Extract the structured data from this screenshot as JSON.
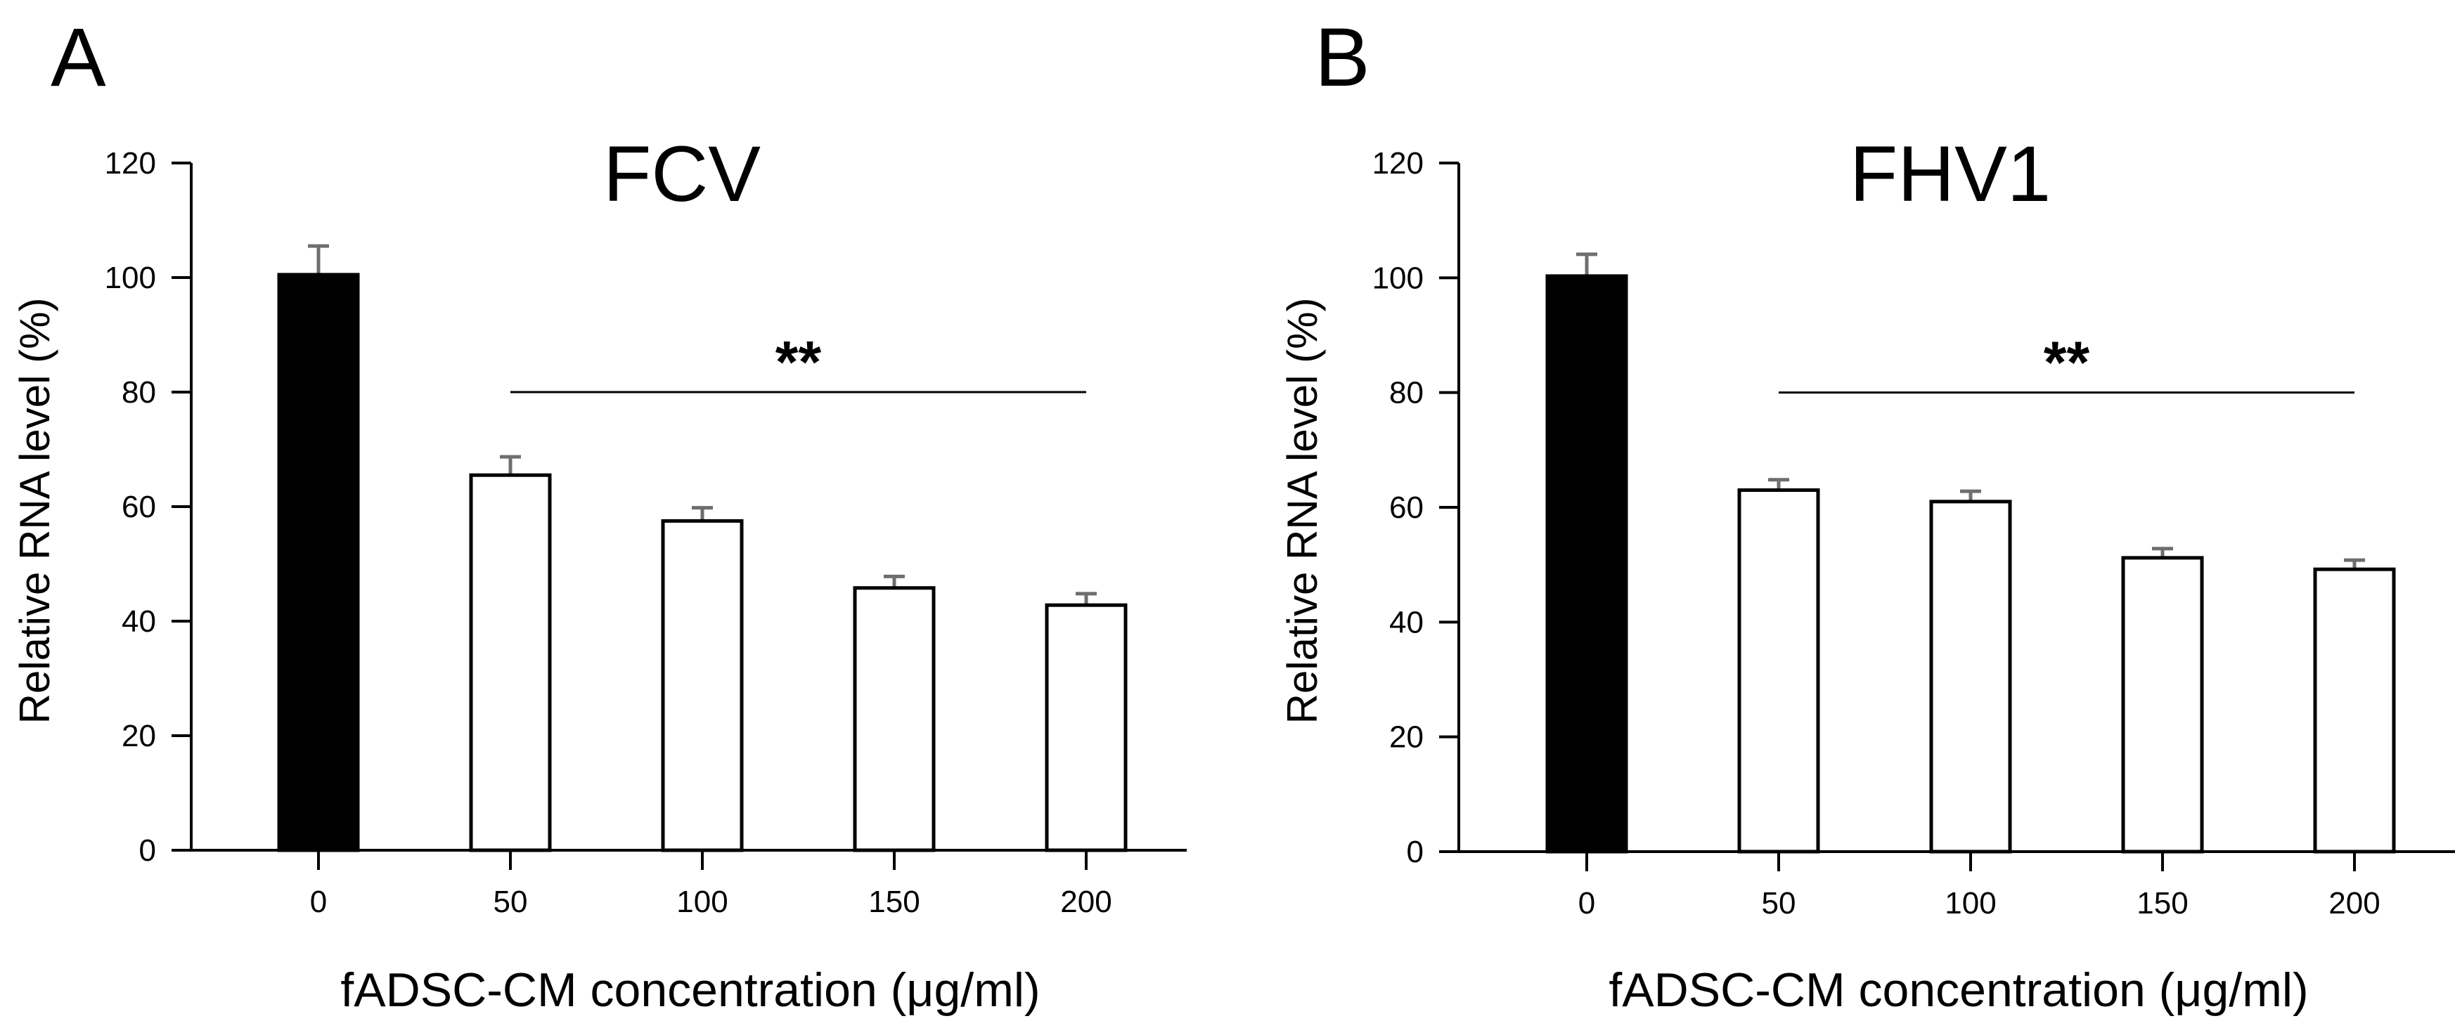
{
  "chart_data": [
    {
      "type": "bar",
      "panel": "A",
      "title": "FCV",
      "categories": [
        "0",
        "50",
        "100",
        "150",
        "200"
      ],
      "values": [
        100.5,
        65.5,
        57.5,
        45.8,
        42.8
      ],
      "errors": [
        5,
        3.2,
        2.3,
        2.0,
        2.0
      ],
      "bar_fills": [
        "#000000",
        "#ffffff",
        "#ffffff",
        "#ffffff",
        "#ffffff"
      ],
      "xlabel": "fADSC-CM concentration (μg/ml)",
      "ylabel": "Relative RNA level (%)",
      "ylim": [
        0,
        120
      ],
      "yticks": [
        "0",
        "20",
        "40",
        "60",
        "80",
        "100",
        "120"
      ],
      "significance": {
        "label": "**",
        "from": "50",
        "to": "200",
        "y": 80
      }
    },
    {
      "type": "bar",
      "panel": "B",
      "title": "FHV1",
      "categories": [
        "0",
        "50",
        "100",
        "150",
        "200"
      ],
      "values": [
        100.3,
        63,
        61,
        51.2,
        49.2
      ],
      "errors": [
        3.8,
        1.8,
        1.8,
        1.6,
        1.6
      ],
      "bar_fills": [
        "#000000",
        "#ffffff",
        "#ffffff",
        "#ffffff",
        "#ffffff"
      ],
      "xlabel": "fADSC-CM concentration (μg/ml)",
      "ylabel": "Relative RNA level (%)",
      "ylim": [
        0,
        120
      ],
      "yticks": [
        "0",
        "20",
        "40",
        "60",
        "80",
        "100",
        "120"
      ],
      "significance": {
        "label": "**",
        "from": "50",
        "to": "200",
        "y": 80
      }
    }
  ]
}
